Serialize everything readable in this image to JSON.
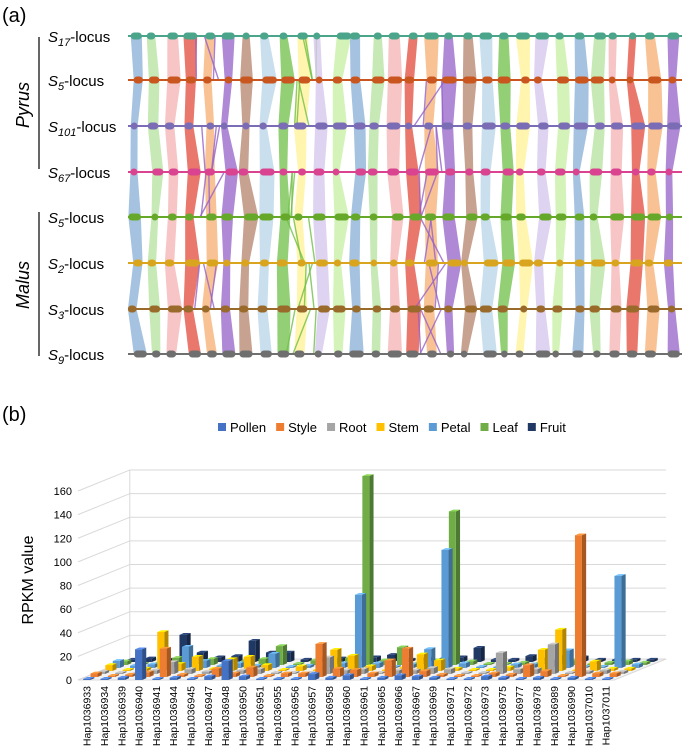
{
  "panel_a": {
    "label": "(a)",
    "groups": [
      {
        "name": "Pyrus",
        "first_track": 0,
        "last_track": 3
      },
      {
        "name": "Malus",
        "first_track": 4,
        "last_track": 7
      }
    ],
    "tracks": [
      {
        "prefix": "S",
        "sub": "17",
        "suffix": "-locus",
        "color": "#4aa58a"
      },
      {
        "prefix": "S",
        "sub": "5",
        "suffix": "-locus",
        "color": "#c9561e"
      },
      {
        "prefix": "S",
        "sub": "101",
        "suffix": "-locus",
        "color": "#7b6db5"
      },
      {
        "prefix": "S",
        "sub": "67",
        "suffix": "-locus",
        "color": "#d9438f"
      },
      {
        "prefix": "S",
        "sub": "5",
        "suffix": "-locus",
        "color": "#66a829"
      },
      {
        "prefix": "S",
        "sub": "2",
        "suffix": "-locus",
        "color": "#d9a51f"
      },
      {
        "prefix": "S",
        "sub": "3",
        "suffix": "-locus",
        "color": "#9a6a2a"
      },
      {
        "prefix": "S",
        "sub": "9",
        "suffix": "-locus",
        "color": "#6f6f6f"
      }
    ],
    "ribbon_palette": [
      "#8fb4d8",
      "#b8e3a3",
      "#f5b6b6",
      "#e24a3b",
      "#f7b37a",
      "#9460c8",
      "#b98b74",
      "#bcd7ea",
      "#6fbf45",
      "#fff29a",
      "#d6c8ec",
      "#c9f0a8"
    ]
  },
  "panel_b": {
    "label": "(b)"
  },
  "chart_data": {
    "type": "bar",
    "title": "",
    "xlabel": "",
    "ylabel": "RPKM value",
    "ylim": [
      0,
      160
    ],
    "yticks": [
      0,
      20,
      40,
      60,
      80,
      100,
      120,
      140,
      160
    ],
    "legend_position": "top",
    "categories": [
      "Hap1036933",
      "Hap1036934",
      "Hap1036939",
      "Hap1036940",
      "Hap1036941",
      "Hap1036944",
      "Hap1036945",
      "Hap1036947",
      "Hap1036948",
      "Hap1036950",
      "Hap1036951",
      "Hap1036955",
      "Hap1036956",
      "Hap1036957",
      "Hap1036958",
      "Hap1036960",
      "Hap1036961",
      "Hap1036965",
      "Hap1036966",
      "Hap1036967",
      "Hap1036969",
      "Hap1036971",
      "Hap1036972",
      "Hap1036973",
      "Hap1036975",
      "Hap1036977",
      "Hap1036978",
      "Hap1036989",
      "Hap1036990",
      "Hap1037010",
      "Hap1037011"
    ],
    "series": [
      {
        "name": "Pollen",
        "color": "#4472c4",
        "values": [
          0,
          1,
          2,
          26,
          1,
          2,
          1,
          3,
          16,
          3,
          0,
          1,
          1,
          5,
          2,
          4,
          1,
          2,
          4,
          3,
          2,
          1,
          1,
          3,
          2,
          1,
          2,
          1,
          2,
          0,
          1
        ]
      },
      {
        "name": "Style",
        "color": "#ed7d31",
        "values": [
          3,
          1,
          2,
          4,
          24,
          2,
          1,
          7,
          3,
          8,
          0,
          3,
          3,
          28,
          7,
          6,
          3,
          14,
          24,
          5,
          2,
          1,
          1,
          3,
          2,
          10,
          5,
          1,
          120,
          3,
          3
        ]
      },
      {
        "name": "Root",
        "color": "#a5a5a5",
        "values": [
          2,
          1,
          1,
          3,
          10,
          4,
          2,
          3,
          3,
          4,
          0,
          1,
          1,
          14,
          3,
          4,
          1,
          3,
          3,
          5,
          4,
          1,
          1,
          18,
          4,
          4,
          25,
          1,
          2,
          3,
          2
        ]
      },
      {
        "name": "Stem",
        "color": "#ffc000",
        "values": [
          5,
          1,
          2,
          33,
          6,
          12,
          2,
          10,
          12,
          5,
          1,
          4,
          1,
          18,
          13,
          4,
          1,
          3,
          14,
          9,
          2,
          1,
          1,
          3,
          2,
          18,
          35,
          1,
          8,
          2,
          2
        ]
      },
      {
        "name": "Petal",
        "color": "#5b9bd5",
        "values": [
          6,
          2,
          3,
          2,
          18,
          6,
          2,
          4,
          2,
          12,
          1,
          2,
          2,
          4,
          62,
          4,
          1,
          3,
          16,
          100,
          4,
          1,
          1,
          3,
          3,
          6,
          15,
          1,
          1,
          78,
          3
        ]
      },
      {
        "name": "Leaf",
        "color": "#70ad47",
        "values": [
          3,
          1,
          2,
          6,
          5,
          5,
          3,
          4,
          5,
          16,
          1,
          4,
          4,
          6,
          160,
          4,
          15,
          2,
          4,
          130,
          3,
          1,
          1,
          2,
          2,
          3,
          4,
          1,
          2,
          3,
          2
        ]
      },
      {
        "name": "Fruit",
        "color": "#203864",
        "values": [
          2,
          3,
          2,
          23,
          8,
          4,
          5,
          18,
          8,
          8,
          2,
          3,
          3,
          4,
          4,
          6,
          2,
          3,
          3,
          4,
          12,
          2,
          2,
          5,
          3,
          5,
          4,
          2,
          2,
          2,
          2
        ]
      }
    ]
  }
}
